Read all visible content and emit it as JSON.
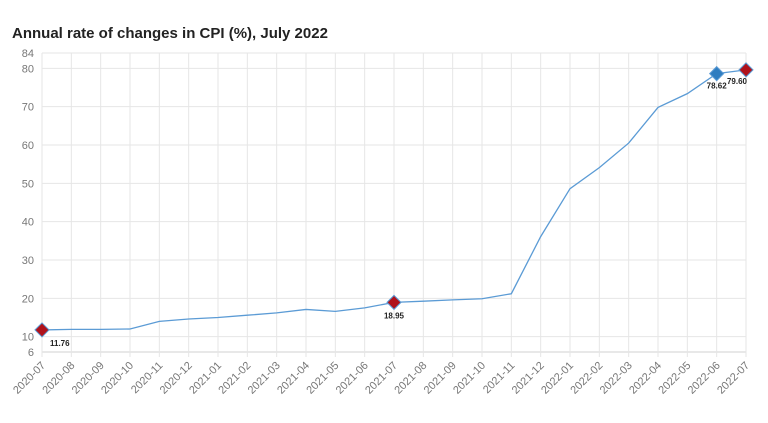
{
  "chart_data": {
    "type": "line",
    "title": "Annual rate of changes in CPI (%), July 2022",
    "xlabel": "",
    "ylabel": "",
    "ylim": [
      6,
      84
    ],
    "yticks": [
      6,
      10,
      20,
      30,
      40,
      50,
      60,
      70,
      80,
      84
    ],
    "grid": true,
    "legend": "none",
    "line_color": "#5b9bd5",
    "categories": [
      "2020-07",
      "2020-08",
      "2020-09",
      "2020-10",
      "2020-11",
      "2020-12",
      "2021-01",
      "2021-02",
      "2021-03",
      "2021-04",
      "2021-05",
      "2021-06",
      "2021-07",
      "2021-08",
      "2021-09",
      "2021-10",
      "2021-11",
      "2021-12",
      "2022-01",
      "2022-02",
      "2022-03",
      "2022-04",
      "2022-05",
      "2022-06",
      "2022-07"
    ],
    "series": [
      {
        "values": [
          11.76,
          11.9,
          11.9,
          12.0,
          14.0,
          14.6,
          15.0,
          15.6,
          16.2,
          17.1,
          16.6,
          17.5,
          18.95,
          19.25,
          19.6,
          19.9,
          21.2,
          36.1,
          48.6,
          54.1,
          60.5,
          69.8,
          73.4,
          78.62,
          79.6
        ]
      }
    ],
    "highlighted_points": [
      {
        "category": "2020-07",
        "value": 11.76,
        "label": "11.76",
        "color": "#b0121b"
      },
      {
        "category": "2021-07",
        "value": 18.95,
        "label": "18.95",
        "color": "#b0121b"
      },
      {
        "category": "2022-06",
        "value": 78.62,
        "label": "78.62",
        "color": "#2f7dc0"
      },
      {
        "category": "2022-07",
        "value": 79.6,
        "label": "79.60",
        "color": "#b0121b"
      }
    ]
  }
}
